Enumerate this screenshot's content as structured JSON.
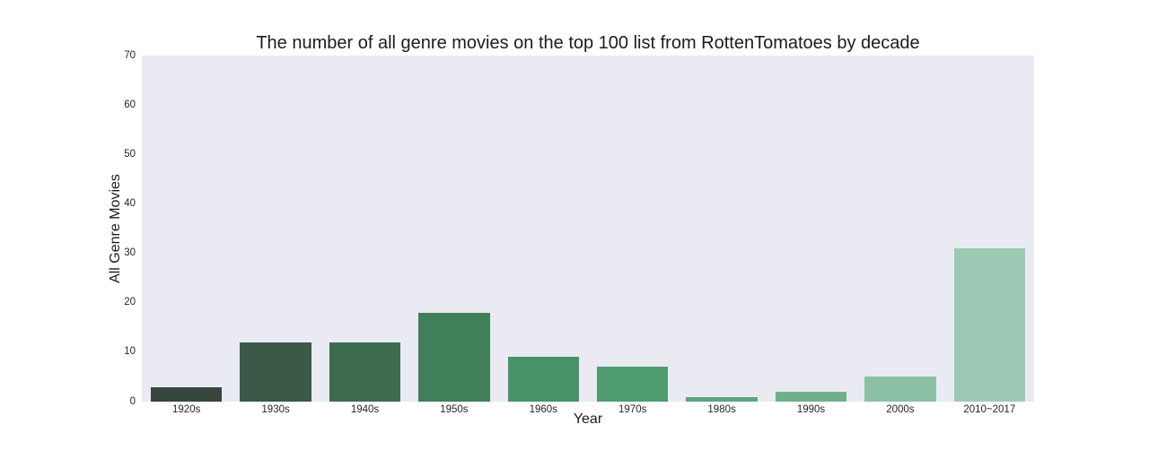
{
  "chart_data": {
    "type": "bar",
    "title": "The number of all genre movies on the top 100 list from RottenTomatoes by decade",
    "xlabel": "Year",
    "ylabel": "All Genre Movies",
    "categories": [
      "1920s",
      "1930s",
      "1940s",
      "1950s",
      "1960s",
      "1970s",
      "1980s",
      "1990s",
      "2000s",
      "2010~2017"
    ],
    "values": [
      3,
      12,
      12,
      18,
      9,
      7,
      1,
      2,
      5,
      31
    ],
    "bar_colors": [
      "#36463d",
      "#3a5947",
      "#3d6b50",
      "#3f7f5a",
      "#479267",
      "#4f9c6e",
      "#5ca57b",
      "#6fb08a",
      "#8bc0a4",
      "#9ccab4"
    ],
    "ylim": [
      0,
      70
    ],
    "yticks": [
      0,
      10,
      20,
      30,
      40,
      50,
      60,
      70
    ],
    "grid": false,
    "legend": "none",
    "plot_background": "#e9eaf2",
    "figure_background": "#ffffff"
  }
}
